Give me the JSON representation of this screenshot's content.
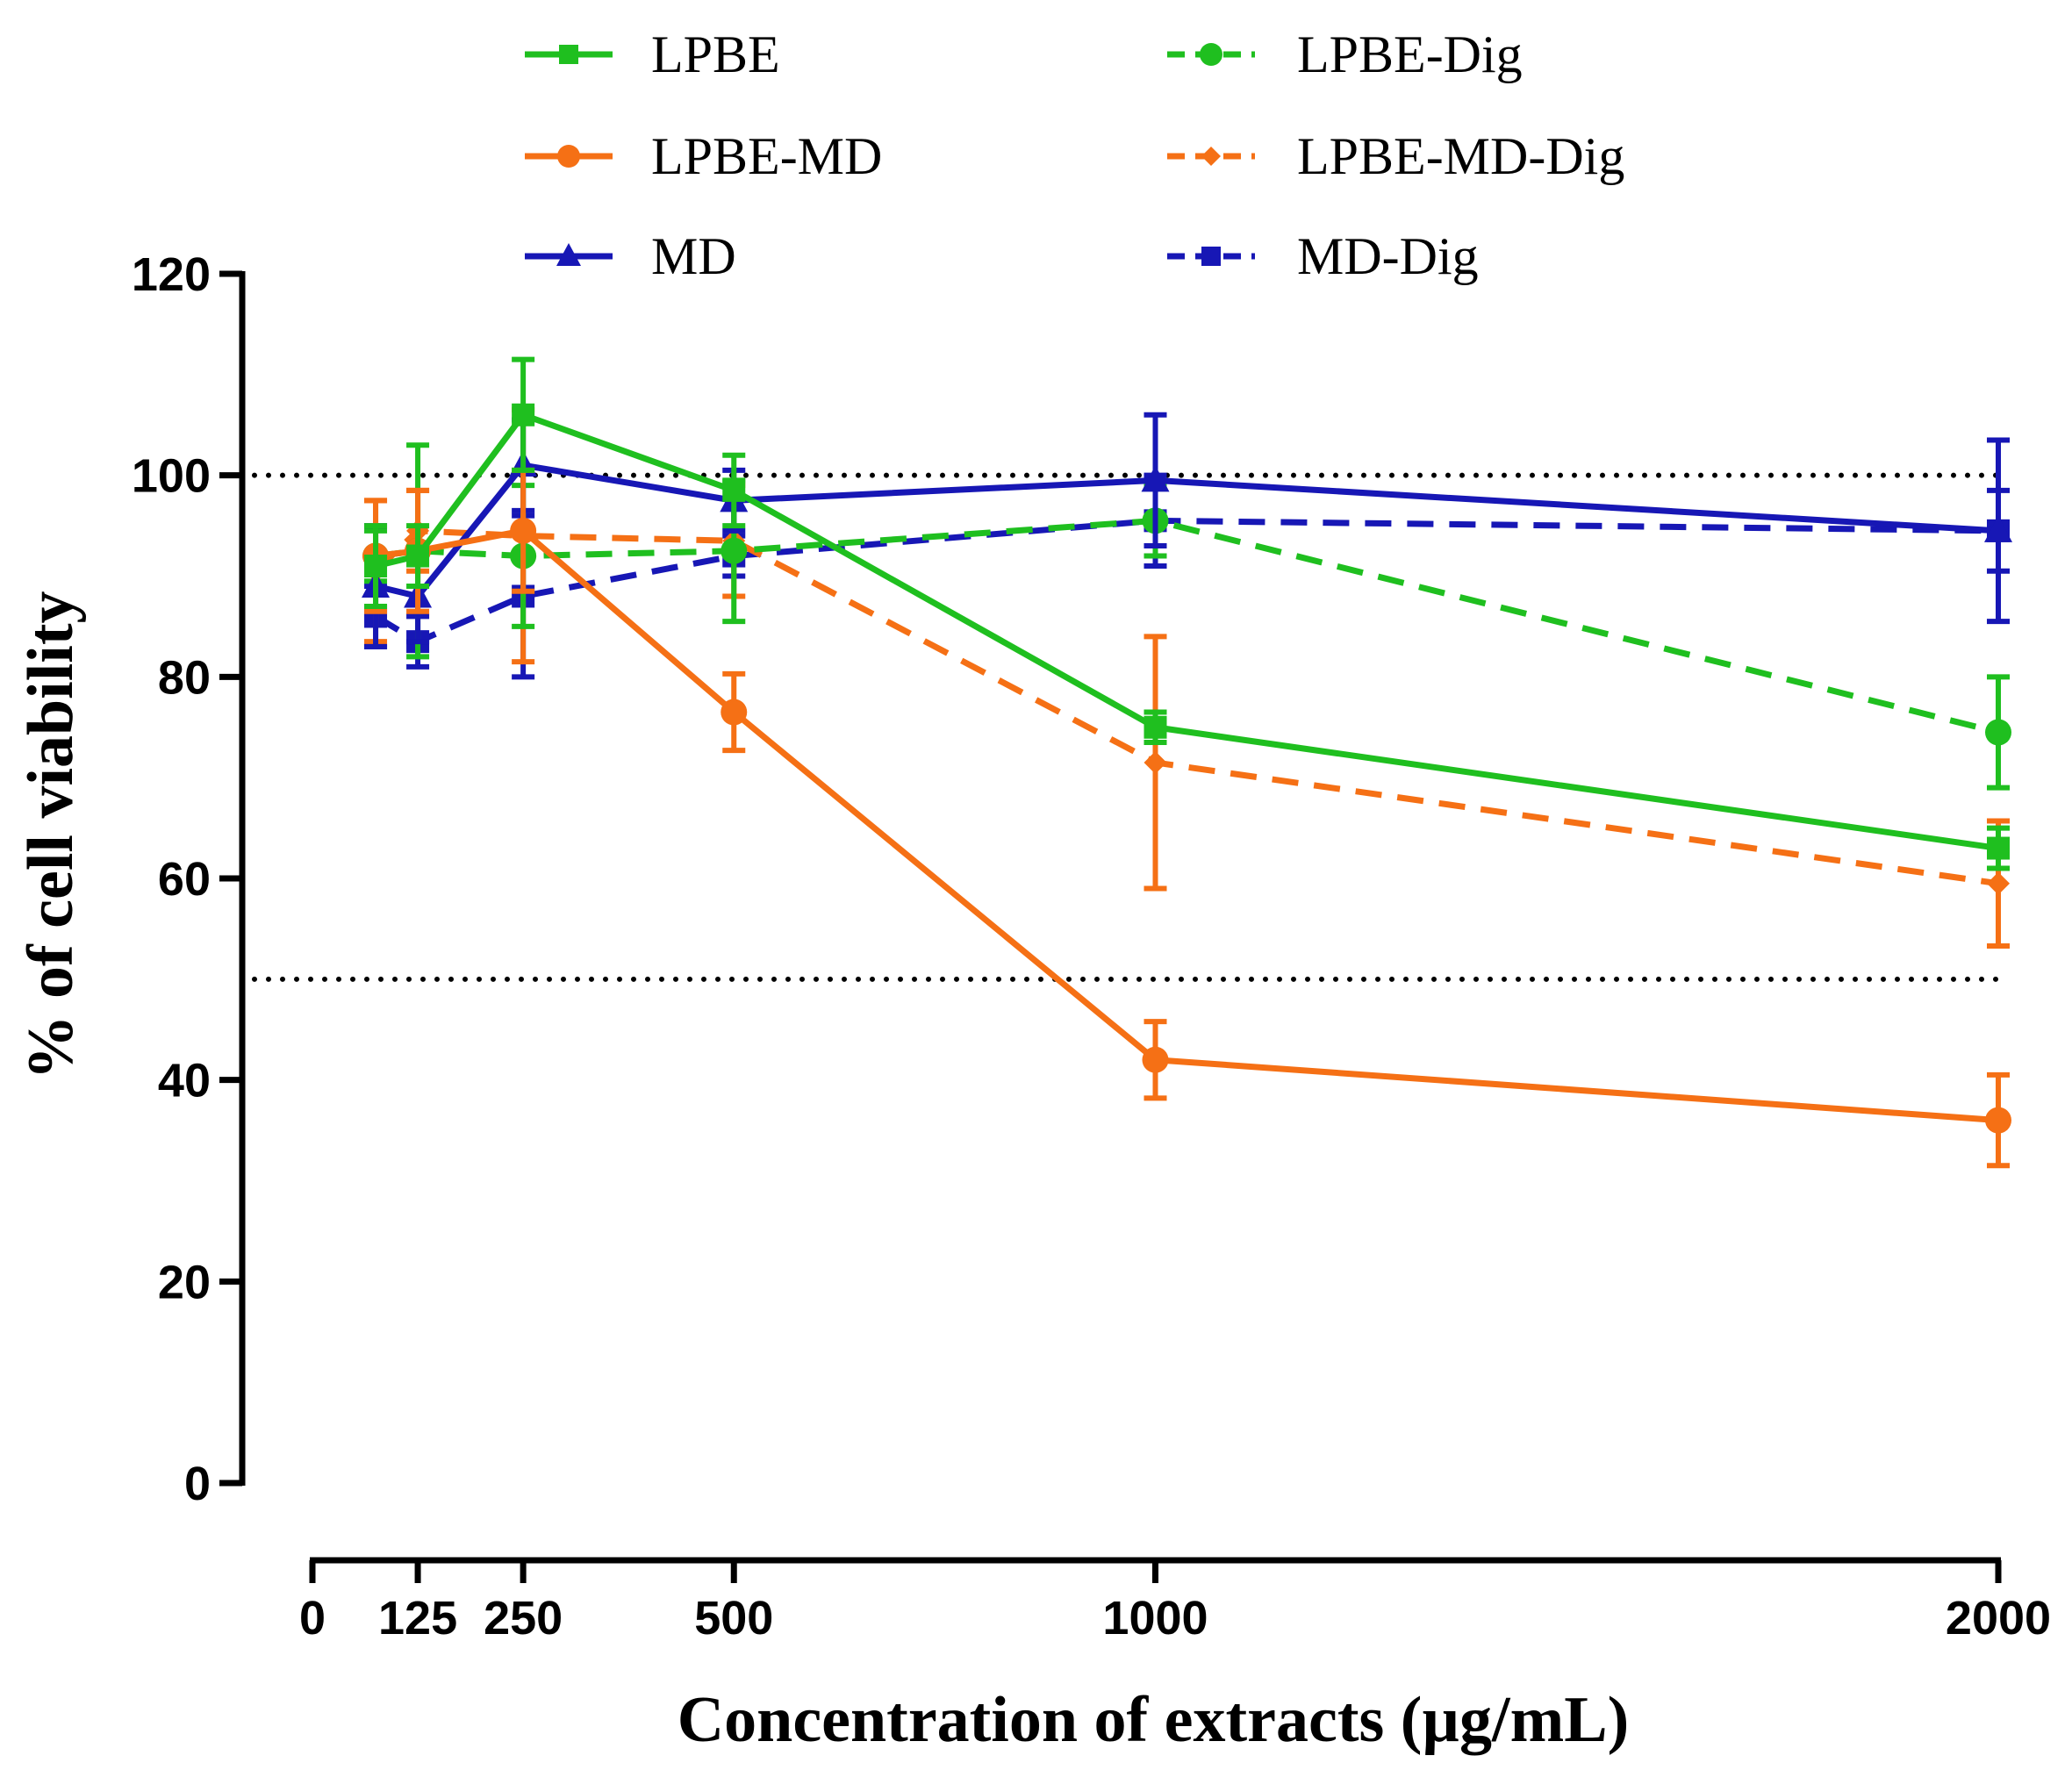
{
  "chart_data": {
    "type": "line",
    "title": "",
    "xlabel": "Concentration of extracts (µg/mL)",
    "ylabel": "% of cell viability",
    "x_ticks": [
      0,
      125,
      250,
      500,
      1000,
      2000
    ],
    "x_tick_labels": [
      "0",
      "125",
      "250",
      "500",
      "1000",
      "2000"
    ],
    "y_ticks": [
      0,
      20,
      40,
      60,
      80,
      100,
      120
    ],
    "y_tick_labels": [
      "0",
      "20",
      "40",
      "60",
      "80",
      "100",
      "120"
    ],
    "xlim": [
      0,
      2000
    ],
    "ylim": [
      0,
      120
    ],
    "reference_lines": [
      100,
      50
    ],
    "legend_position": "top",
    "series": [
      {
        "name": "LPBE",
        "color": "#1fbf1f",
        "dash": "solid",
        "marker": "square",
        "x": [
          75,
          125,
          250,
          500,
          1000,
          2000
        ],
        "y": [
          91,
          92,
          106,
          98.5,
          75,
          63
        ],
        "err": [
          4,
          3,
          5.5,
          3.5,
          1.5,
          2
        ]
      },
      {
        "name": "LPBE-MD",
        "color": "#f57015",
        "dash": "solid",
        "marker": "circle",
        "x": [
          75,
          125,
          250,
          500,
          1000,
          2000
        ],
        "y": [
          92,
          92.5,
          94.5,
          76.5,
          42,
          36
        ],
        "err": [
          5.5,
          6,
          6,
          3.8,
          3.8,
          4.5
        ]
      },
      {
        "name": "MD",
        "color": "#1717b5",
        "dash": "solid",
        "marker": "triangle",
        "x": [
          75,
          125,
          250,
          500,
          1000,
          2000
        ],
        "y": [
          89,
          88,
          101,
          97.5,
          99.5,
          94.5
        ],
        "err": [
          6,
          4.5,
          4.5,
          3,
          6.5,
          9
        ]
      },
      {
        "name": "LPBE-Dig",
        "color": "#1fbf1f",
        "dash": "dashed",
        "marker": "circle",
        "x": [
          75,
          125,
          250,
          500,
          1000,
          2000
        ],
        "y": [
          92,
          92.5,
          92,
          92.5,
          95.5,
          74.5
        ],
        "err": [
          2.5,
          10.5,
          7,
          7,
          3.5,
          5.5
        ]
      },
      {
        "name": "LPBE-MD-Dig",
        "color": "#f57015",
        "dash": "dashed",
        "marker": "diamond",
        "x": [
          75,
          125,
          250,
          500,
          1000,
          2000
        ],
        "y": [
          90.5,
          94.5,
          94,
          93.5,
          71.5,
          59.5
        ],
        "err": [
          7,
          4,
          12.5,
          5.5,
          12.5,
          6.2
        ]
      },
      {
        "name": "MD-Dig",
        "color": "#1717b5",
        "dash": "dashed",
        "marker": "square",
        "x": [
          75,
          125,
          250,
          500,
          1000,
          2000
        ],
        "y": [
          86,
          83.5,
          88,
          92,
          95.5,
          94.5
        ],
        "err": [
          3,
          2.5,
          8,
          2,
          4.5,
          4
        ]
      }
    ]
  }
}
